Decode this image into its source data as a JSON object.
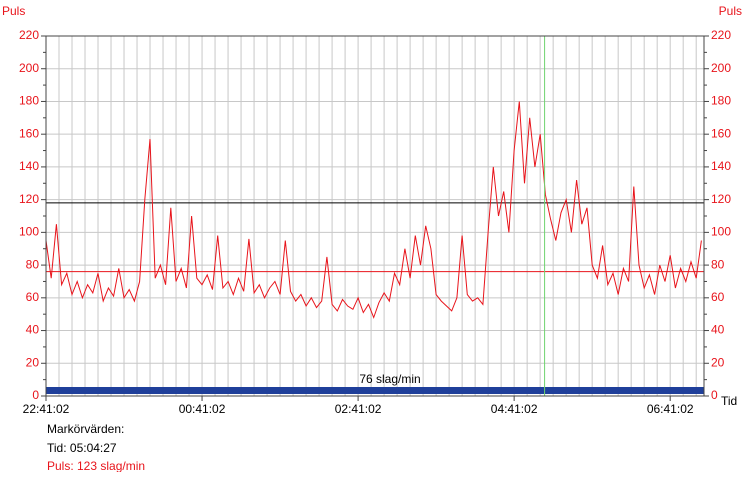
{
  "chart_data": {
    "type": "line",
    "y_axis_label": "Puls",
    "y2_axis_label": "Puls",
    "x_axis_label": "Tid",
    "x": [
      "22:41:02",
      "22:45:02",
      "22:49:02",
      "22:53:02",
      "22:57:02",
      "23:01:02",
      "23:05:02",
      "23:09:02",
      "23:13:02",
      "23:17:02",
      "23:21:02",
      "23:25:02",
      "23:29:02",
      "23:33:02",
      "23:37:02",
      "23:41:02",
      "23:45:02",
      "23:49:02",
      "23:53:02",
      "23:57:02",
      "00:01:02",
      "00:05:02",
      "00:09:02",
      "00:13:02",
      "00:17:02",
      "00:21:02",
      "00:25:02",
      "00:29:02",
      "00:33:02",
      "00:37:02",
      "00:41:02",
      "00:45:02",
      "00:49:02",
      "00:53:02",
      "00:57:02",
      "01:01:02",
      "01:05:02",
      "01:09:02",
      "01:13:02",
      "01:17:02",
      "01:21:02",
      "01:25:02",
      "01:29:02",
      "01:33:02",
      "01:37:02",
      "01:41:02",
      "01:45:02",
      "01:49:02",
      "01:53:02",
      "01:57:02",
      "02:01:02",
      "02:05:02",
      "02:09:02",
      "02:13:02",
      "02:17:02",
      "02:21:02",
      "02:25:02",
      "02:29:02",
      "02:33:02",
      "02:37:02",
      "02:41:02",
      "02:45:02",
      "02:49:02",
      "02:53:02",
      "02:57:02",
      "03:01:02",
      "03:05:02",
      "03:09:02",
      "03:13:02",
      "03:17:02",
      "03:21:02",
      "03:25:02",
      "03:29:02",
      "03:33:02",
      "03:37:02",
      "03:41:02",
      "03:45:02",
      "03:49:02",
      "03:53:02",
      "03:57:02",
      "04:01:02",
      "04:05:02",
      "04:09:02",
      "04:13:02",
      "04:17:02",
      "04:21:02",
      "04:25:02",
      "04:29:02",
      "04:33:02",
      "04:37:02",
      "04:41:02",
      "04:45:02",
      "04:49:02",
      "04:53:02",
      "04:57:02",
      "05:01:02",
      "05:05:02",
      "05:09:02",
      "05:13:02",
      "05:17:02",
      "05:21:02",
      "05:25:02",
      "05:29:02",
      "05:33:02",
      "05:37:02",
      "05:41:02",
      "05:45:02",
      "05:49:02",
      "05:53:02",
      "05:57:02",
      "06:01:02",
      "06:05:02",
      "06:09:02",
      "06:13:02",
      "06:17:02",
      "06:21:02",
      "06:25:02",
      "06:29:02",
      "06:33:02",
      "06:37:02",
      "06:41:02",
      "06:45:02",
      "06:49:02",
      "06:53:02",
      "06:57:02",
      "07:01:02",
      "07:05:02"
    ],
    "series": [
      {
        "color": "#e8141b",
        "values": [
          95,
          72,
          105,
          68,
          75,
          62,
          70,
          60,
          68,
          63,
          75,
          58,
          66,
          61,
          78,
          60,
          65,
          58,
          70,
          120,
          157,
          72,
          80,
          68,
          115,
          70,
          78,
          66,
          110,
          72,
          68,
          74,
          65,
          98,
          66,
          70,
          62,
          72,
          64,
          96,
          63,
          68,
          60,
          66,
          70,
          62,
          95,
          64,
          58,
          62,
          55,
          60,
          54,
          58,
          85,
          56,
          52,
          59,
          55,
          53,
          60,
          51,
          56,
          48,
          57,
          63,
          58,
          75,
          68,
          90,
          72,
          98,
          80,
          104,
          90,
          62,
          58,
          55,
          52,
          60,
          98,
          62,
          58,
          60,
          56,
          100,
          140,
          110,
          125,
          100,
          150,
          180,
          130,
          170,
          140,
          160,
          123,
          108,
          95,
          112,
          120,
          100,
          132,
          105,
          115,
          80,
          72,
          92,
          68,
          75,
          62,
          78,
          70,
          128,
          80,
          66,
          74,
          62,
          80,
          70,
          86,
          66,
          78,
          70,
          82,
          72,
          95
        ]
      }
    ],
    "xlim": [
      "22:41:02",
      "07:07:02"
    ],
    "xticks": [
      "22:41:02",
      "00:41:02",
      "02:41:02",
      "04:41:02",
      "06:41:02"
    ],
    "xgrid": [
      "22:51:02",
      "23:01:02",
      "23:11:02",
      "23:21:02",
      "23:31:02",
      "23:41:02",
      "23:51:02",
      "00:01:02",
      "00:11:02",
      "00:21:02",
      "00:31:02",
      "00:41:02",
      "00:51:02",
      "01:01:02",
      "01:11:02",
      "01:21:02",
      "01:31:02",
      "01:41:02",
      "01:51:02",
      "02:01:02",
      "02:11:02",
      "02:21:02",
      "02:31:02",
      "02:41:02",
      "02:51:02",
      "03:01:02",
      "03:11:02",
      "03:21:02",
      "03:31:02",
      "03:41:02",
      "03:51:02",
      "04:01:02",
      "04:11:02",
      "04:21:02",
      "04:31:02",
      "04:41:02",
      "04:51:02",
      "05:01:02",
      "05:11:02",
      "05:21:02",
      "05:31:02",
      "05:41:02",
      "05:51:02",
      "06:01:02",
      "06:11:02",
      "06:21:02",
      "06:31:02",
      "06:41:02",
      "06:51:02",
      "07:01:02"
    ],
    "ylim": [
      0,
      220
    ],
    "yticks": [
      0,
      20,
      40,
      60,
      80,
      100,
      120,
      140,
      160,
      180,
      200,
      220
    ],
    "yminorticks": [
      10,
      30,
      50,
      70,
      90,
      110,
      130,
      150,
      170,
      190,
      210
    ],
    "grid": true,
    "reference_lines": [
      {
        "value": 118,
        "color": "#000000"
      },
      {
        "value": 76,
        "color": "#e8141b"
      }
    ],
    "average_label": "76 slag/min",
    "marker": {
      "time": "05:04:27",
      "color": "#6fd36f",
      "heading": "Markörvärden:",
      "time_label": "Tid: 05:04:27",
      "pulse_label": "Puls: 123 slag/min"
    }
  }
}
